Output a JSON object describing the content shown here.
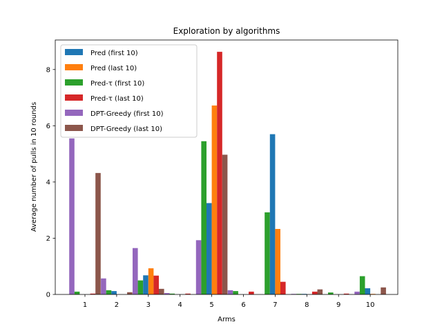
{
  "chart_data": {
    "type": "bar",
    "title": "Exploration by algorithms",
    "xlabel": "Arms",
    "ylabel": "Average number of pulls in 10 rounds",
    "ylim": [
      0,
      9.05
    ],
    "yticks": [
      0,
      2,
      4,
      6,
      8
    ],
    "categories": [
      "1",
      "2",
      "3",
      "4",
      "5",
      "6",
      "7",
      "8",
      "9",
      "10"
    ],
    "series": [
      {
        "name": "DPT-Greedy (first 10)",
        "legend_label": "DPT-Greedy (first 10)",
        "color": "#9467bd",
        "values": [
          5.55,
          0.57,
          1.65,
          0.05,
          1.93,
          0.15,
          0.0,
          0.02,
          0.0,
          0.1
        ]
      },
      {
        "name": "Pred-τ (first 10)",
        "legend_label": "Pred-τ (first 10)",
        "color": "#2ca02c",
        "values": [
          0.1,
          0.15,
          0.5,
          0.03,
          5.45,
          0.12,
          2.92,
          0.02,
          0.07,
          0.65
        ]
      },
      {
        "name": "Pred (first 10)",
        "legend_label": "Pred (first 10)",
        "color": "#1f77b4",
        "values": [
          0.0,
          0.12,
          0.68,
          0.0,
          3.25,
          0.0,
          5.7,
          0.02,
          0.0,
          0.22
        ]
      },
      {
        "name": "Pred (last 10)",
        "legend_label": "Pred (last 10)",
        "color": "#ff7f0e",
        "values": [
          0.0,
          0.0,
          0.93,
          0.0,
          6.72,
          0.0,
          2.33,
          0.0,
          0.0,
          0.02
        ]
      },
      {
        "name": "Pred-τ (last 10)",
        "legend_label": "Pred-τ (last 10)",
        "color": "#d62728",
        "values": [
          0.03,
          0.0,
          0.67,
          0.03,
          8.63,
          0.1,
          0.45,
          0.1,
          0.03,
          0.0
        ]
      },
      {
        "name": "DPT-Greedy (last 10)",
        "legend_label": "DPT-Greedy (last 10)",
        "color": "#8c564b",
        "values": [
          4.32,
          0.08,
          0.2,
          0.0,
          4.97,
          0.0,
          0.0,
          0.18,
          0.0,
          0.25
        ]
      }
    ],
    "legend_order": [
      2,
      3,
      1,
      4,
      0,
      5
    ],
    "legend_position": "top-left",
    "grid": false
  }
}
